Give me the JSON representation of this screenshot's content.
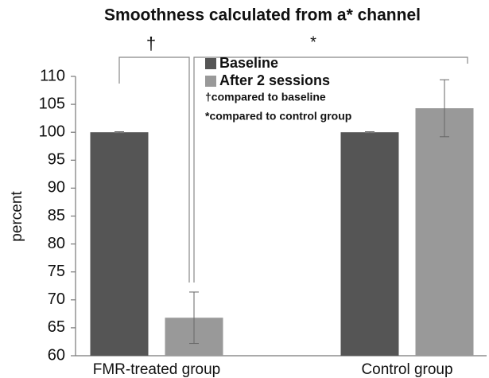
{
  "chart_data": {
    "type": "bar",
    "title": "Smoothness calculated from a* channel",
    "ylabel": "percent",
    "categories": [
      "FMR-treated group",
      "Control group"
    ],
    "series": [
      {
        "name": "Baseline",
        "color": "#555555",
        "values": [
          100,
          100
        ],
        "errors": [
          0.1,
          0.1
        ]
      },
      {
        "name": "After 2 sessions",
        "color": "#999999",
        "values": [
          66.8,
          104.3
        ],
        "errors": [
          4.6,
          5.1
        ]
      }
    ],
    "ylim": [
      60,
      110
    ],
    "yticks": [
      60,
      65,
      70,
      75,
      80,
      85,
      90,
      95,
      100,
      105,
      110
    ],
    "annotations": [
      "†",
      "*",
      "†compared to baseline",
      "*compared to control group"
    ]
  }
}
